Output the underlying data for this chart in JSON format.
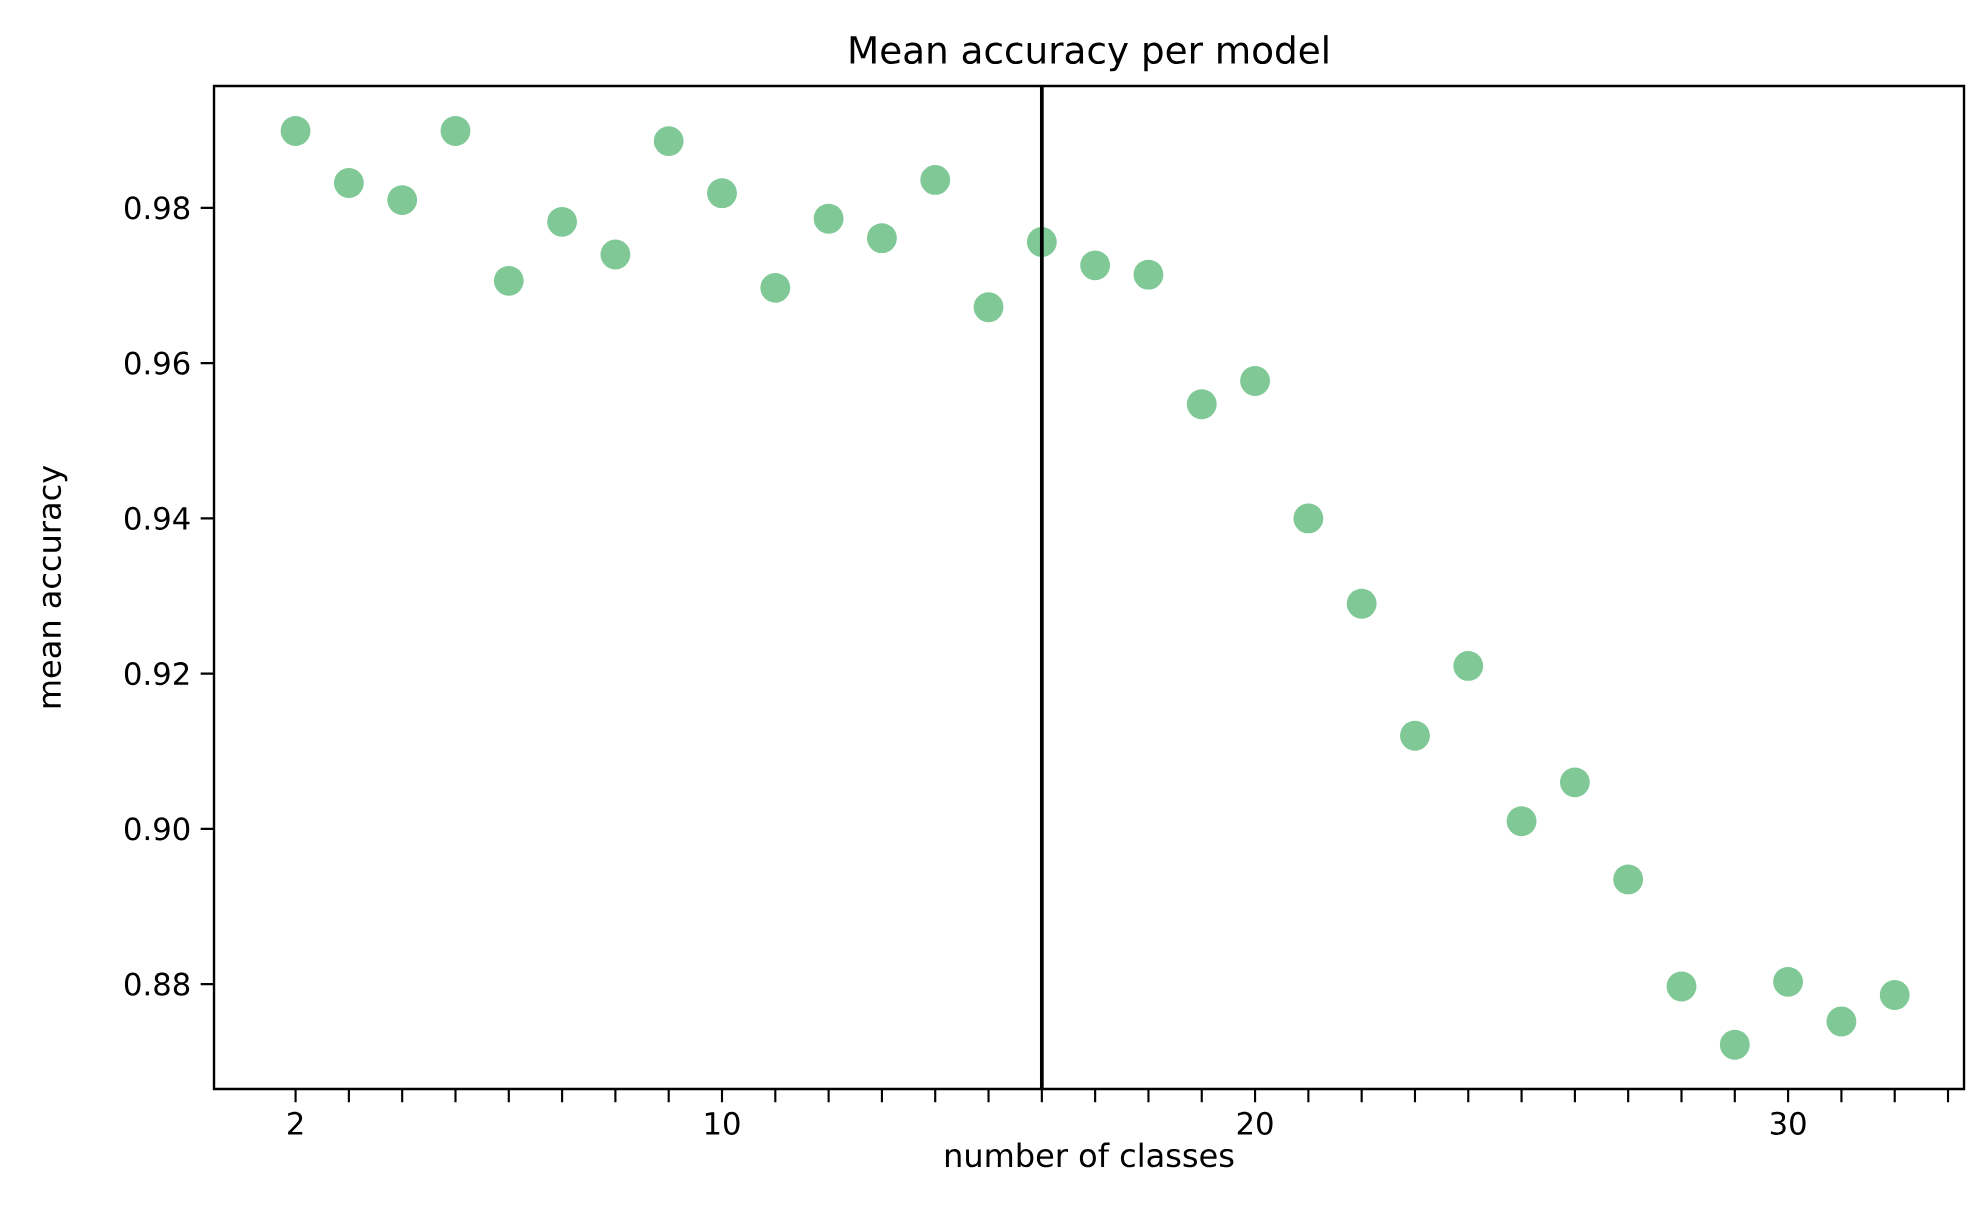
{
  "chart_data": {
    "type": "scatter",
    "title": "Mean accuracy per model",
    "xlabel": "number of classes",
    "ylabel": "mean accuracy",
    "x": [
      2,
      3,
      4,
      5,
      6,
      7,
      8,
      9,
      10,
      11,
      12,
      13,
      14,
      15,
      16,
      17,
      18,
      19,
      20,
      21,
      22,
      23,
      24,
      25,
      26,
      27,
      28,
      29,
      30,
      31,
      32
    ],
    "series": [
      {
        "color": "#80c997",
        "values": [
          0.9899,
          0.9832,
          0.981,
          0.9899,
          0.9706,
          0.9782,
          0.974,
          0.9886,
          0.9819,
          0.9697,
          0.9786,
          0.9761,
          0.9836,
          0.9672,
          0.9756,
          0.9726,
          0.9714,
          0.9547,
          0.9577,
          0.94,
          0.929,
          0.912,
          0.921,
          0.901,
          0.906,
          0.8935,
          0.8797,
          0.8722,
          0.8803,
          0.8752,
          0.8786
        ]
      }
    ],
    "xlim": [
      0.47,
      33.3
    ],
    "ylim": [
      0.8665,
      0.9957
    ],
    "xticks": [
      2,
      {
        "value": 3,
        "label": null
      },
      {
        "value": 4,
        "label": null
      },
      {
        "value": 5,
        "label": null
      },
      {
        "value": 6,
        "label": null
      },
      {
        "value": 7,
        "label": null
      },
      {
        "value": 8,
        "label": null
      },
      {
        "value": 9,
        "label": null
      },
      10,
      {
        "value": 11,
        "label": null
      },
      {
        "value": 12,
        "label": null
      },
      {
        "value": 13,
        "label": null
      },
      {
        "value": 14,
        "label": null
      },
      {
        "value": 15,
        "label": null
      },
      {
        "value": 16,
        "label": null
      },
      {
        "value": 17,
        "label": null
      },
      {
        "value": 18,
        "label": null
      },
      {
        "value": 19,
        "label": null
      },
      20,
      {
        "value": 21,
        "label": null
      },
      {
        "value": 22,
        "label": null
      },
      {
        "value": 23,
        "label": null
      },
      {
        "value": 24,
        "label": null
      },
      {
        "value": 25,
        "label": null
      },
      {
        "value": 26,
        "label": null
      },
      {
        "value": 27,
        "label": null
      },
      {
        "value": 28,
        "label": null
      },
      {
        "value": 29,
        "label": null
      },
      30,
      {
        "value": 31,
        "label": null
      },
      {
        "value": 32,
        "label": null
      },
      {
        "value": 33,
        "label": null
      }
    ],
    "yticks": [
      {
        "value": 0.88,
        "label": "0.88"
      },
      {
        "value": 0.9,
        "label": "0.90"
      },
      {
        "value": 0.92,
        "label": "0.92"
      },
      {
        "value": 0.94,
        "label": "0.94"
      },
      {
        "value": 0.96,
        "label": "0.96"
      },
      {
        "value": 0.98,
        "label": "0.98"
      }
    ],
    "ref_lines": [
      {
        "axis": "x",
        "value": 16,
        "color": "#000000"
      }
    ],
    "marker": "circle",
    "grid": false
  }
}
